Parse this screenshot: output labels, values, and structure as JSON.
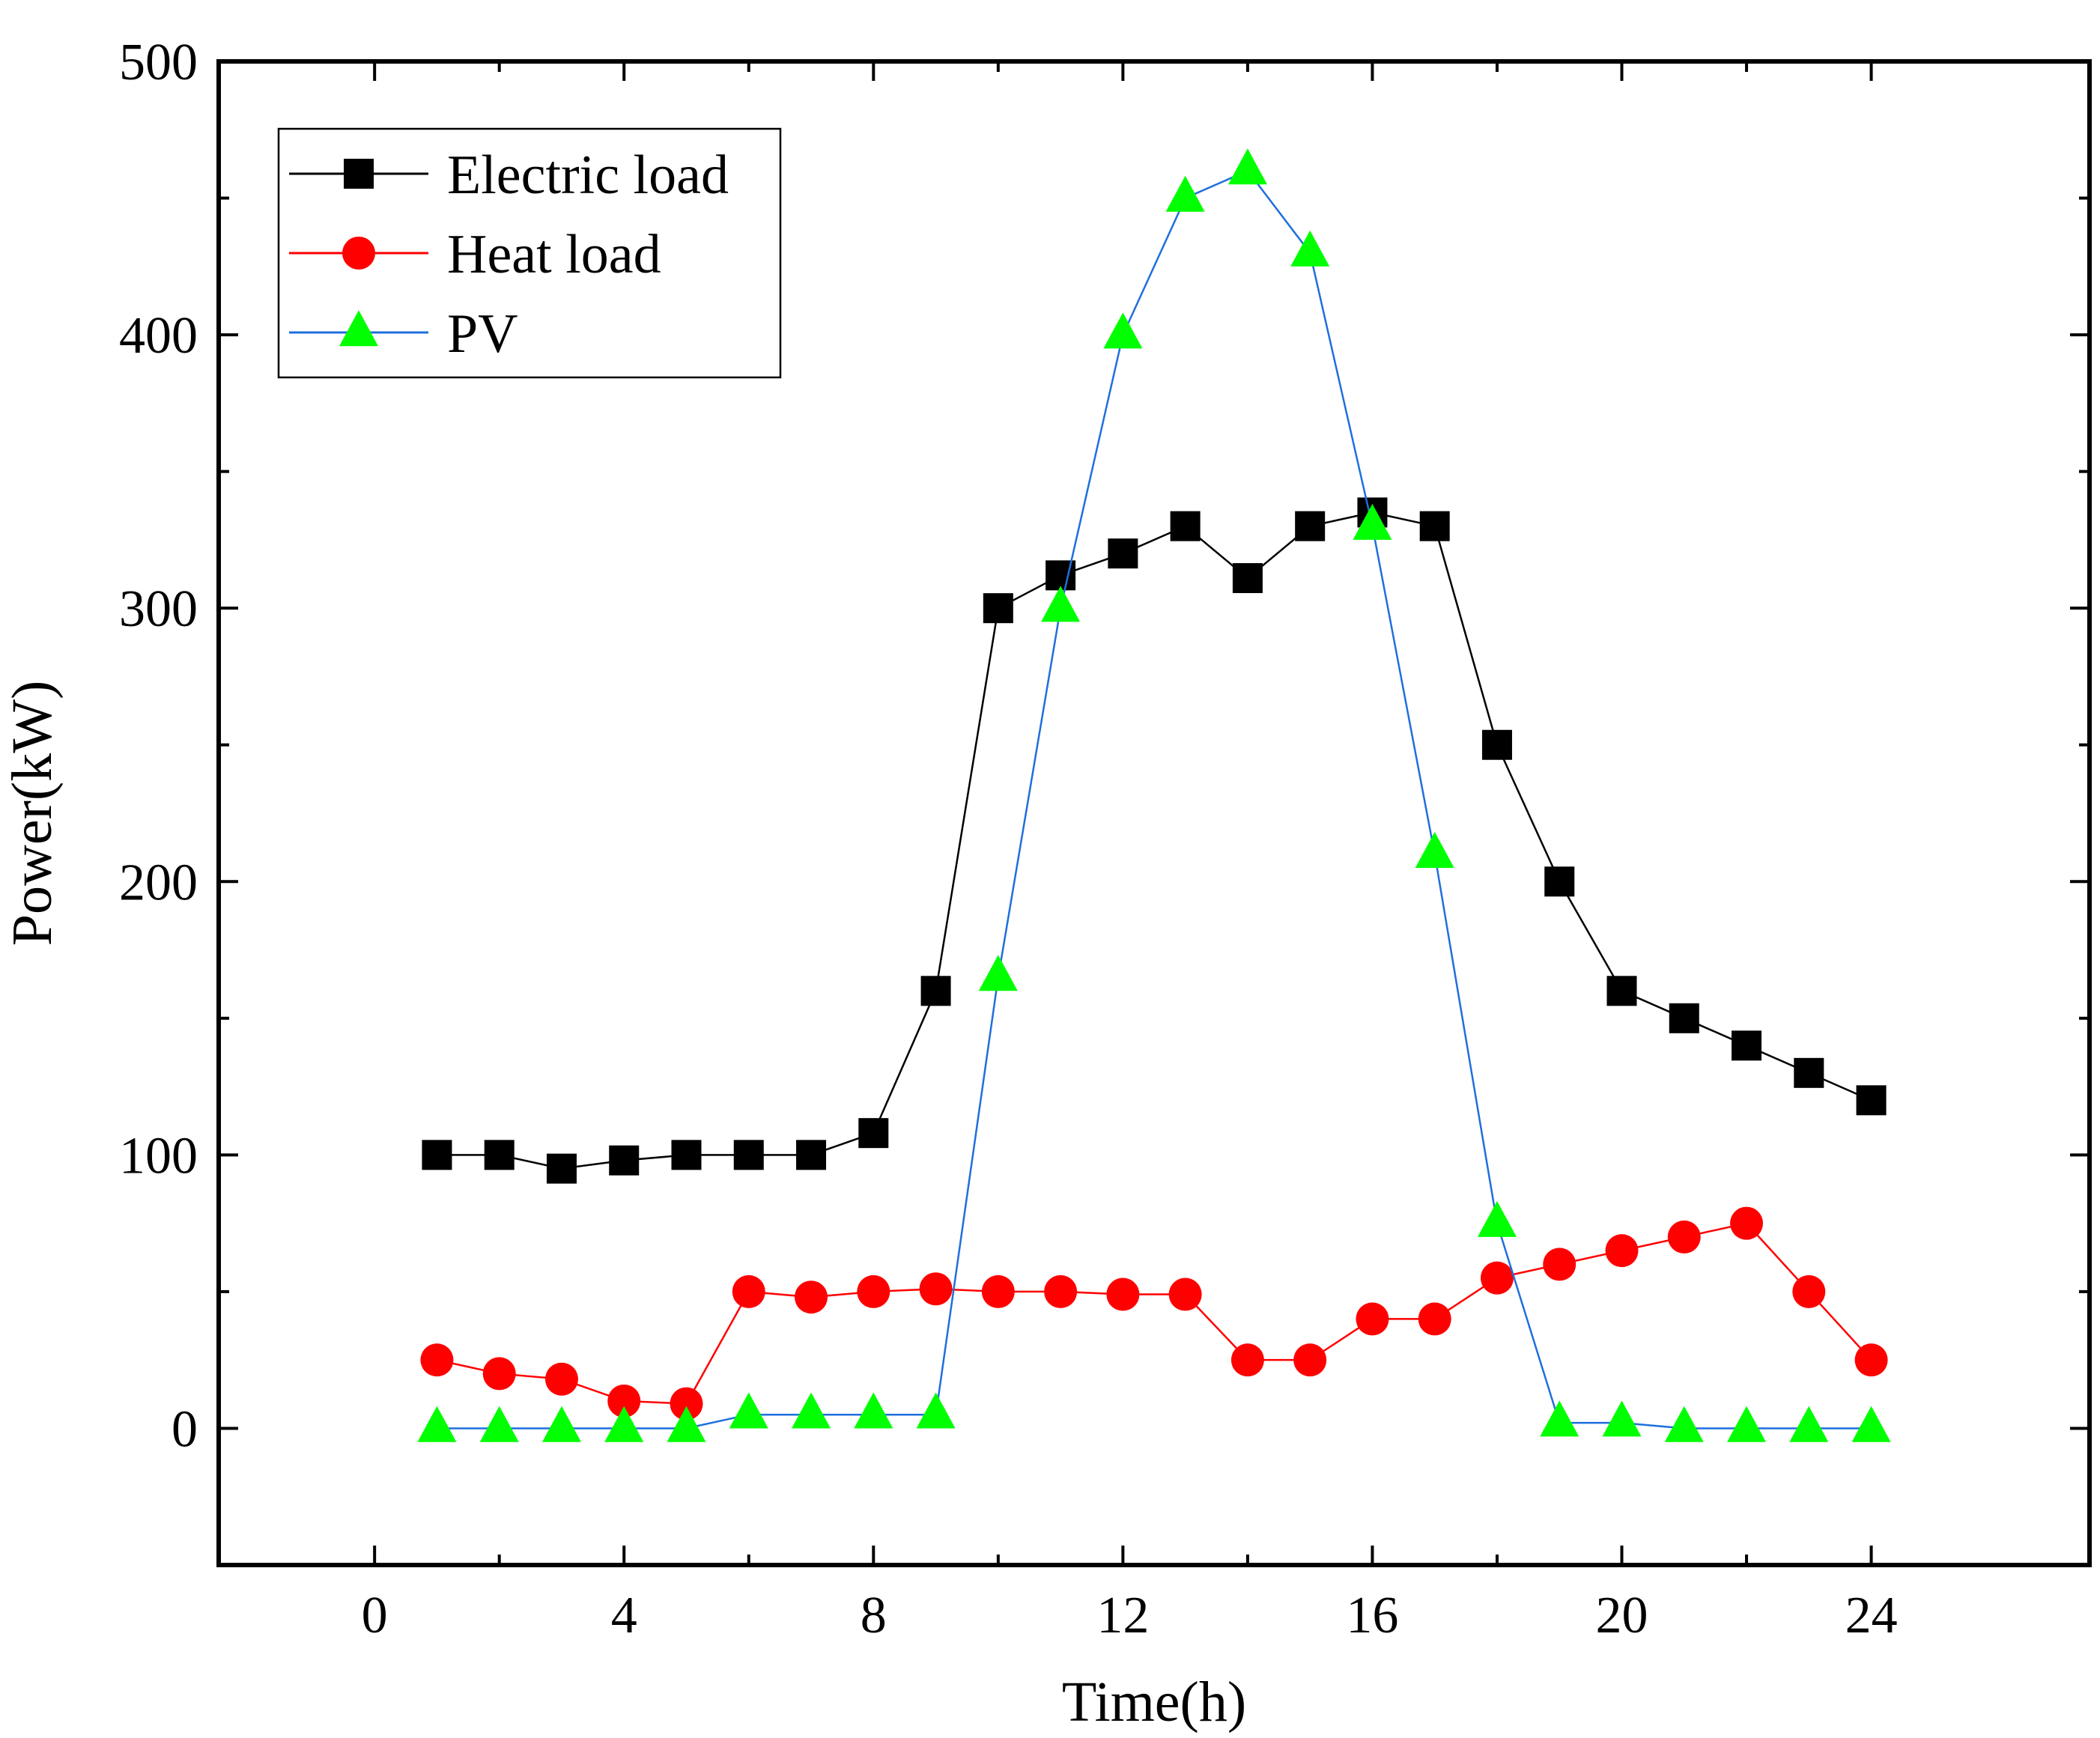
{
  "chart_data": {
    "type": "line",
    "title": "",
    "xlabel": "Time(h)",
    "ylabel": "Power(kW)",
    "xlim": [
      -2.5,
      27.5
    ],
    "ylim": [
      -50,
      500
    ],
    "xticks": [
      0,
      4,
      8,
      12,
      16,
      20,
      24
    ],
    "yticks": [
      0,
      100,
      200,
      300,
      400,
      500
    ],
    "x_minor_step": 2,
    "y_minor_step": 50,
    "grid": false,
    "legend_position": "top-left",
    "x": [
      1,
      2,
      3,
      4,
      5,
      6,
      7,
      8,
      9,
      10,
      11,
      12,
      13,
      14,
      15,
      16,
      17,
      18,
      19,
      20,
      21,
      22,
      23,
      24
    ],
    "series": [
      {
        "name": "Electric load",
        "color": "#000000",
        "marker": "square",
        "values": [
          100,
          100,
          95,
          98,
          100,
          100,
          100,
          108,
          160,
          300,
          312,
          320,
          330,
          311,
          330,
          335,
          330,
          250,
          200,
          160,
          150,
          140,
          130,
          120
        ]
      },
      {
        "name": "Heat load",
        "color": "#ff0000",
        "marker": "circle",
        "values": [
          25,
          20,
          18,
          10,
          9,
          50,
          48,
          50,
          51,
          50,
          50,
          49,
          49,
          25,
          25,
          40,
          40,
          55,
          60,
          65,
          70,
          75,
          50,
          25
        ]
      },
      {
        "name": "PV",
        "color": "#00ff00",
        "line_color": "#1f6fde",
        "marker": "triangle",
        "values": [
          0,
          0,
          0,
          0,
          0,
          5,
          5,
          5,
          5,
          165,
          300,
          400,
          450,
          460,
          430,
          330,
          210,
          75,
          2,
          2,
          0,
          0,
          0,
          0
        ]
      }
    ]
  }
}
